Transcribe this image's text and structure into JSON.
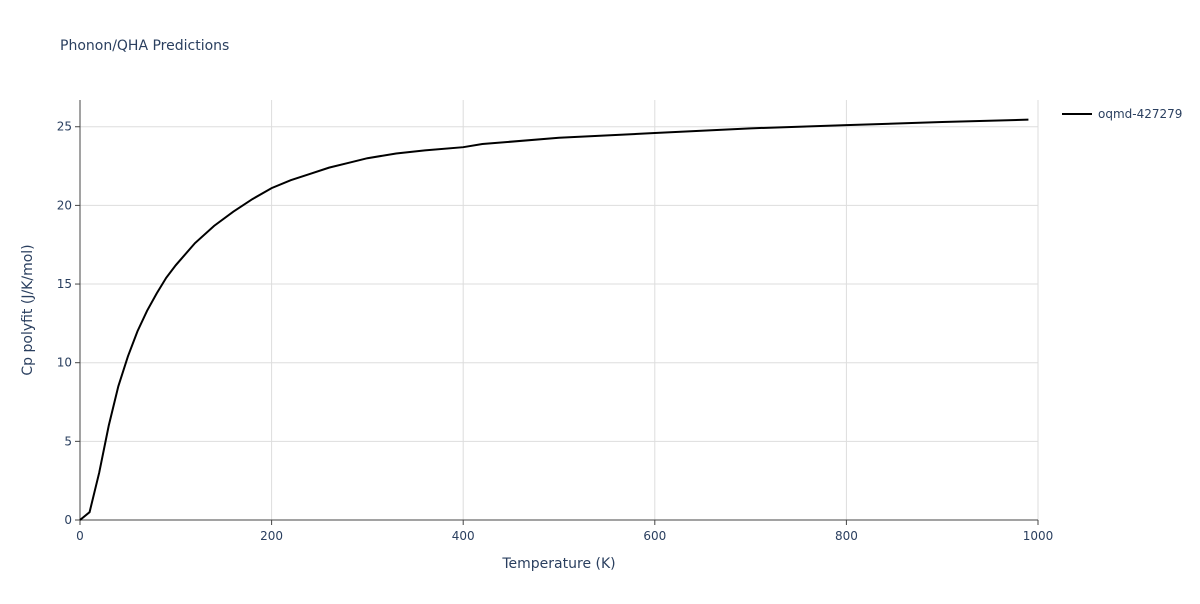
{
  "chart_data": {
    "type": "line",
    "title": "Phonon/QHA Predictions",
    "x_label": "Temperature (K)",
    "y_label": "Cp polyfit (J/K/mol)",
    "x": [
      0,
      10,
      20,
      30,
      40,
      50,
      60,
      70,
      80,
      90,
      100,
      120,
      140,
      160,
      180,
      200,
      220,
      240,
      260,
      280,
      300,
      330,
      360,
      400,
      420,
      500,
      600,
      700,
      800,
      900,
      990
    ],
    "series": [
      {
        "name": "oqmd-427279",
        "color": "#000000",
        "values": [
          0,
          0.5,
          3,
          6,
          8.5,
          10.4,
          12,
          13.3,
          14.4,
          15.4,
          16.2,
          17.6,
          18.7,
          19.6,
          20.4,
          21.1,
          21.6,
          22.0,
          22.4,
          22.7,
          23.0,
          23.3,
          23.5,
          23.7,
          23.9,
          24.3,
          24.6,
          24.9,
          25.1,
          25.3,
          25.45
        ]
      }
    ],
    "xlim": [
      0,
      1000
    ],
    "ylim": [
      0,
      26.7
    ],
    "xticks": [
      0,
      200,
      400,
      600,
      800,
      1000
    ],
    "yticks": [
      0,
      5,
      10,
      15,
      20,
      25
    ],
    "grid": true,
    "legend": "right"
  }
}
